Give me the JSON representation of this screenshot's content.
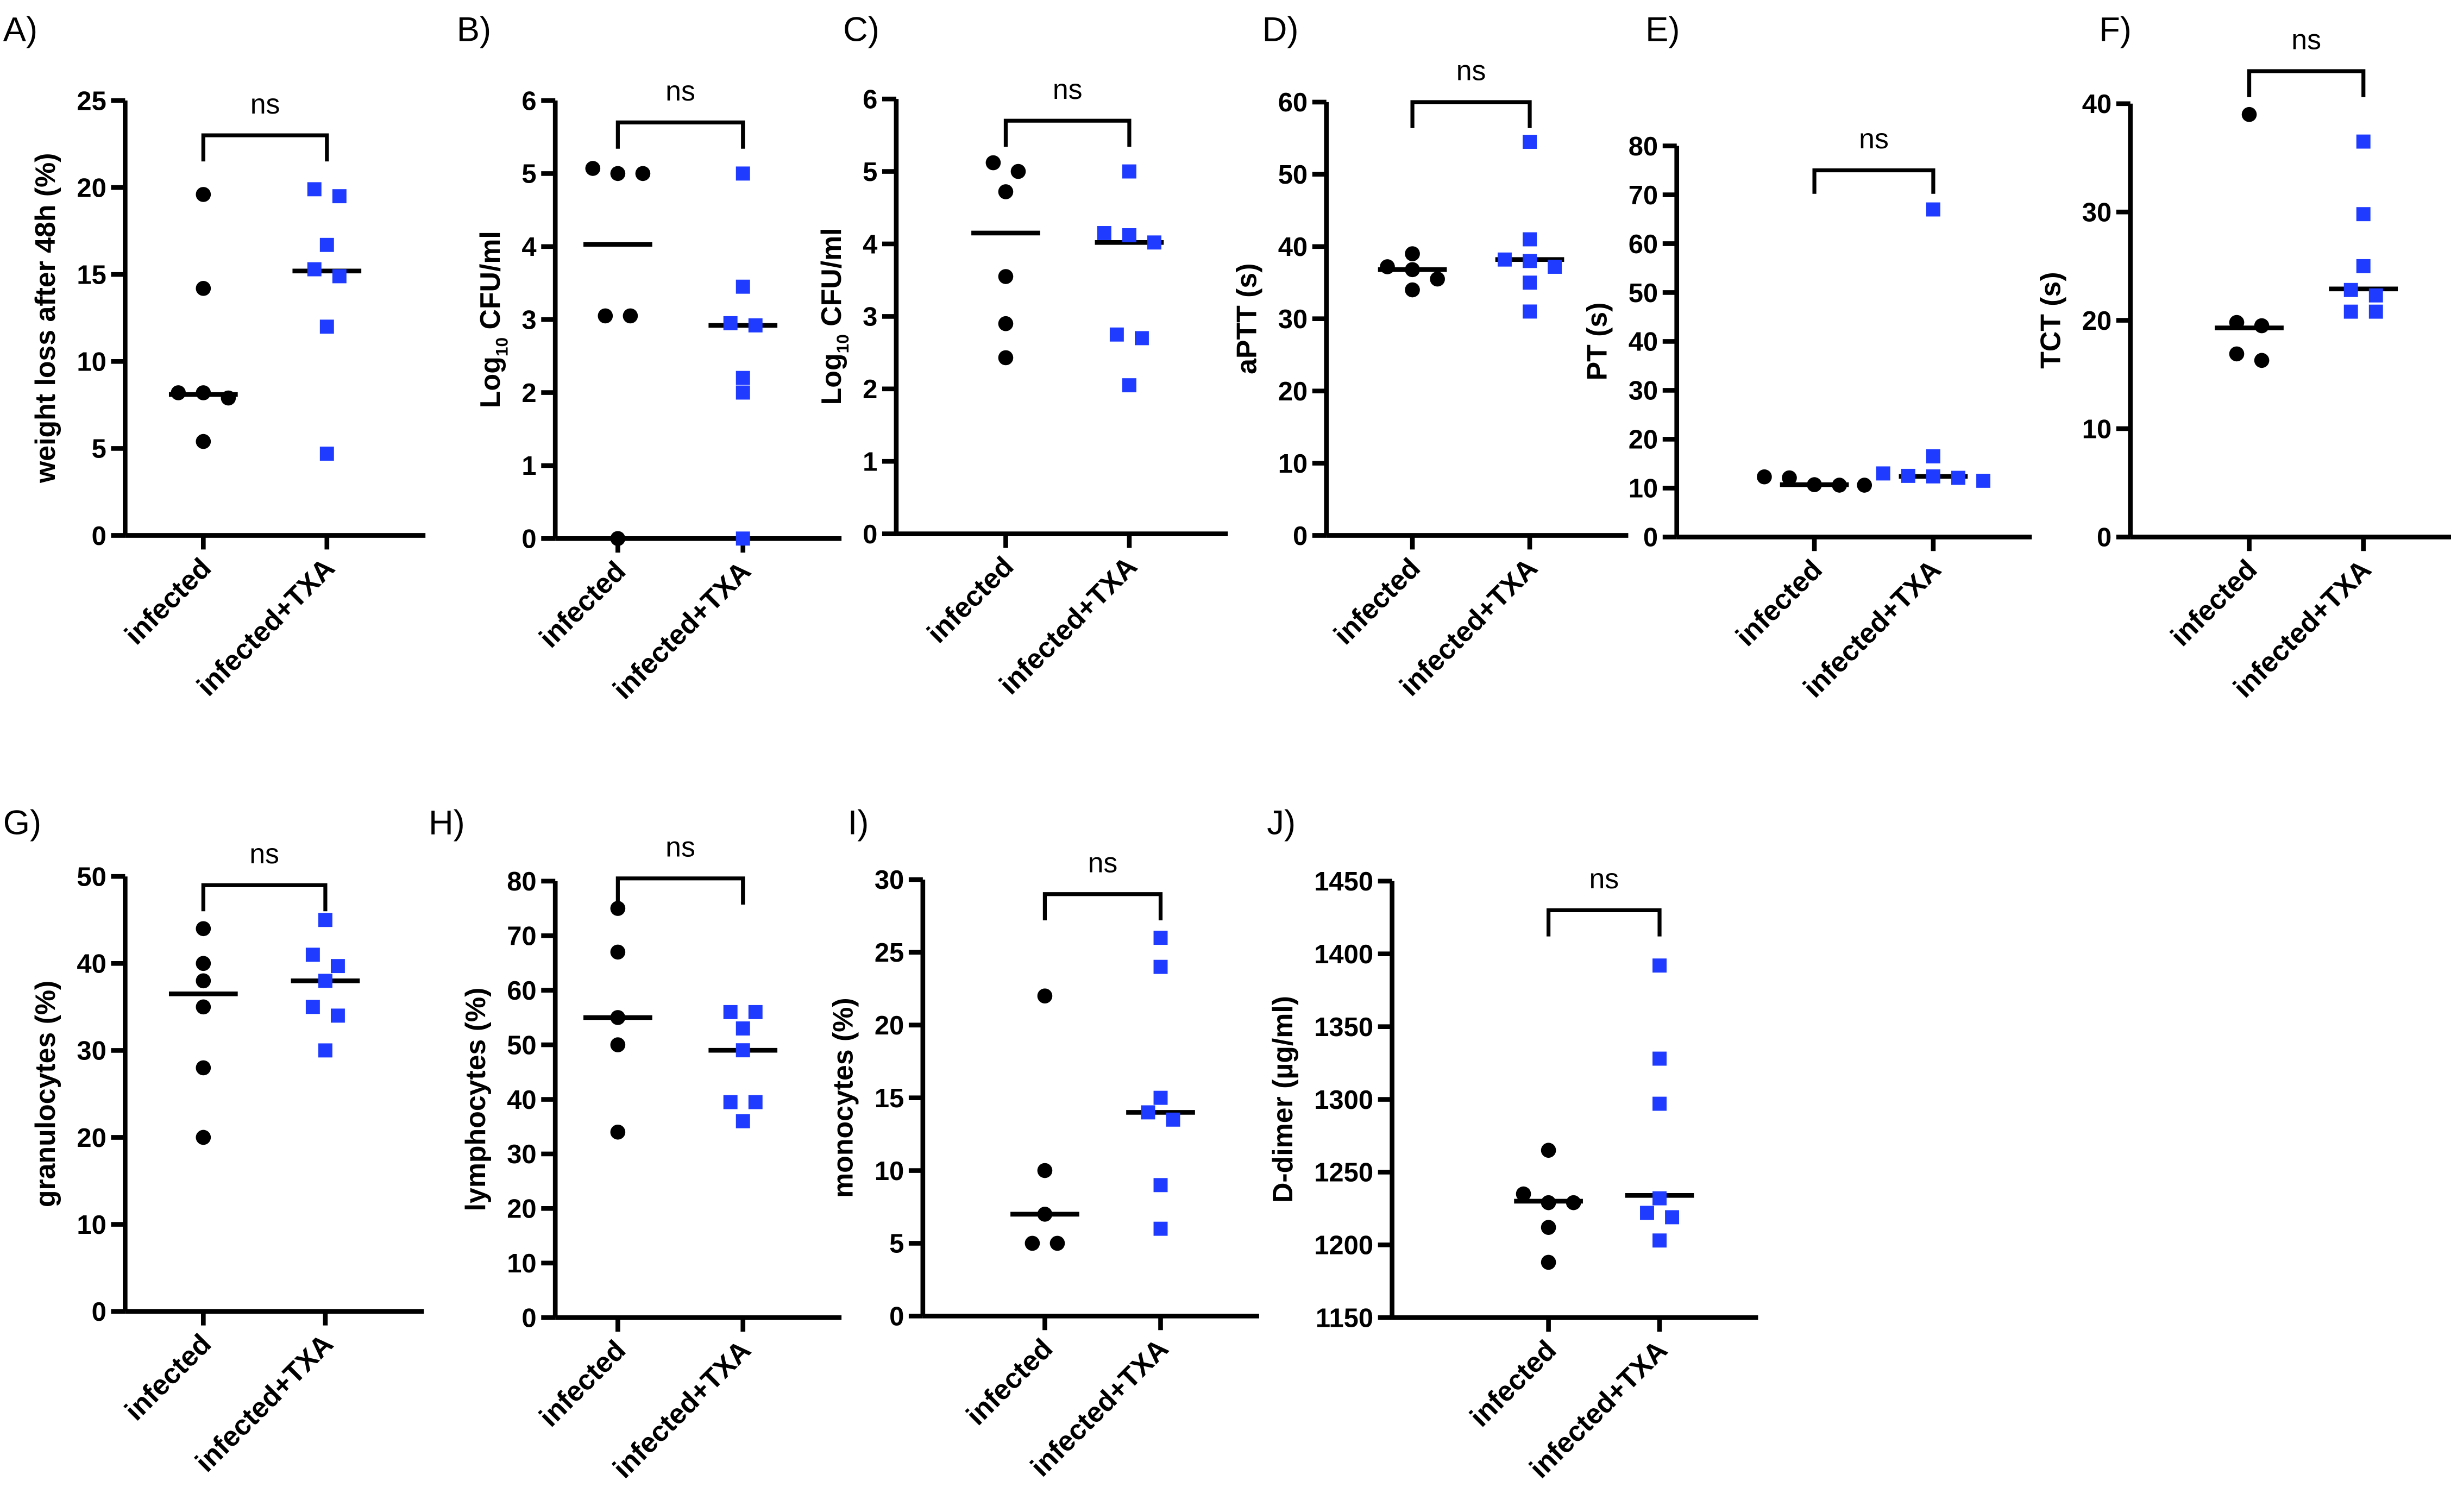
{
  "colors": {
    "infected": "#000000",
    "infected_txa": "#1f3bff"
  },
  "chart_data": [
    {
      "panel": "A)",
      "type": "scatter",
      "ylabel": "weight loss after 48h (%)",
      "ylim": [
        0,
        25
      ],
      "yticks": [
        0,
        5,
        10,
        15,
        20,
        25
      ],
      "categories": [
        "infected",
        "infected+TXA"
      ],
      "significance": "ns",
      "bracket_y": 23,
      "series": [
        {
          "name": "infected",
          "values": [
            19.6,
            14.2,
            8.2,
            7.9,
            8.2,
            5.4
          ],
          "center_line": 8.1
        },
        {
          "name": "infected+TXA",
          "values": [
            19.9,
            19.5,
            16.7,
            14.9,
            15.3,
            12.0,
            4.7
          ],
          "center_line": 15.2
        }
      ]
    },
    {
      "panel": "B)",
      "type": "scatter",
      "ylabel_parts": [
        "Log",
        "10",
        " CFU/ml"
      ],
      "ylim": [
        0,
        6
      ],
      "yticks": [
        0,
        1,
        2,
        3,
        4,
        5,
        6
      ],
      "categories": [
        "infected",
        "infected+TXA"
      ],
      "significance": "ns",
      "bracket_y": 5.7,
      "series": [
        {
          "name": "infected",
          "values": [
            5.07,
            5.0,
            5.0,
            3.05,
            3.05,
            0
          ],
          "center_line": 4.03
        },
        {
          "name": "infected+TXA",
          "values": [
            5.0,
            3.45,
            2.95,
            2.92,
            2.2,
            2.0,
            0
          ],
          "center_line": 2.92
        }
      ]
    },
    {
      "panel": "C)",
      "type": "scatter",
      "ylabel_parts": [
        "Log",
        "10",
        " CFU/ml"
      ],
      "ylim": [
        0,
        6
      ],
      "yticks": [
        0,
        1,
        2,
        3,
        4,
        5,
        6
      ],
      "categories": [
        "infected",
        "infected+TXA"
      ],
      "significance": "ns",
      "bracket_y": 5.7,
      "series": [
        {
          "name": "infected",
          "values": [
            5.12,
            5.0,
            4.72,
            3.55,
            2.9,
            2.43
          ],
          "center_line": 4.15
        },
        {
          "name": "infected+TXA",
          "values": [
            5.0,
            4.15,
            4.12,
            4.02,
            2.75,
            2.7,
            2.05
          ],
          "center_line": 4.02
        }
      ]
    },
    {
      "panel": "D)",
      "type": "scatter",
      "ylabel": "aPTT (s)",
      "ylim": [
        0,
        60
      ],
      "yticks": [
        0,
        10,
        20,
        30,
        40,
        50,
        60
      ],
      "categories": [
        "infected",
        "infected+TXA"
      ],
      "significance": "ns",
      "bracket_y": 60,
      "series": [
        {
          "name": "infected",
          "values": [
            39,
            37.2,
            36.8,
            35.5,
            34
          ],
          "center_line": 36.8
        },
        {
          "name": "infected+TXA",
          "values": [
            54.5,
            41,
            38.2,
            38,
            37.2,
            35,
            31
          ],
          "center_line": 38.2
        }
      ]
    },
    {
      "panel": "E)",
      "type": "scatter",
      "ylabel": "PT (s)",
      "ylim": [
        0,
        80
      ],
      "yticks": [
        0,
        10,
        20,
        30,
        40,
        50,
        60,
        70,
        80
      ],
      "categories": [
        "infected",
        "infected+TXA"
      ],
      "significance": "ns",
      "bracket_y": 75,
      "series": [
        {
          "name": "infected",
          "values": [
            12.3,
            12.1,
            10.7,
            10.6,
            10.6
          ],
          "center_line": 10.7
        },
        {
          "name": "infected+TXA",
          "values": [
            67,
            16.5,
            13,
            12.5,
            12.4,
            12.1,
            11.5
          ],
          "center_line": 12.4
        }
      ]
    },
    {
      "panel": "F)",
      "type": "scatter",
      "ylabel": "TCT (s)",
      "ylim": [
        0,
        40
      ],
      "yticks": [
        0,
        10,
        20,
        30,
        40
      ],
      "categories": [
        "infected",
        "infected+TXA"
      ],
      "significance": "ns",
      "bracket_y": 43,
      "series": [
        {
          "name": "infected",
          "values": [
            39,
            19.8,
            19.5,
            16.9,
            16.3
          ],
          "center_line": 19.3
        },
        {
          "name": "infected+TXA",
          "values": [
            36.5,
            29.8,
            25,
            22.8,
            22.3,
            20.8,
            20.8
          ],
          "center_line": 22.9
        }
      ]
    },
    {
      "panel": "G)",
      "type": "scatter",
      "ylabel": "granulocytes (%)",
      "ylim": [
        0,
        50
      ],
      "yticks": [
        0,
        10,
        20,
        30,
        40,
        50
      ],
      "categories": [
        "infected",
        "infected+TXA"
      ],
      "significance": "ns",
      "bracket_y": 49,
      "series": [
        {
          "name": "infected",
          "values": [
            44,
            40,
            38,
            35,
            28,
            20
          ],
          "center_line": 36.5
        },
        {
          "name": "infected+TXA",
          "values": [
            45,
            41,
            39.7,
            38,
            35,
            34,
            30
          ],
          "center_line": 38
        }
      ]
    },
    {
      "panel": "H)",
      "type": "scatter",
      "ylabel": "lymphocytes (%)",
      "ylim": [
        0,
        80
      ],
      "yticks": [
        0,
        10,
        20,
        30,
        40,
        50,
        60,
        70,
        80
      ],
      "categories": [
        "infected",
        "infected+TXA"
      ],
      "significance": "ns",
      "bracket_y": 80.5,
      "series": [
        {
          "name": "infected",
          "values": [
            75,
            67,
            55,
            50,
            34
          ],
          "center_line": 55
        },
        {
          "name": "infected+TXA",
          "values": [
            56,
            56,
            53,
            49,
            39.5,
            39.5,
            36
          ],
          "center_line": 49
        }
      ]
    },
    {
      "panel": "I)",
      "type": "scatter",
      "ylabel": "monocytes (%)",
      "ylim": [
        0,
        30
      ],
      "yticks": [
        0,
        5,
        10,
        15,
        20,
        25,
        30
      ],
      "categories": [
        "infected",
        "infected+TXA"
      ],
      "significance": "ns",
      "bracket_y": 29,
      "series": [
        {
          "name": "infected",
          "values": [
            22,
            10,
            7,
            5,
            5
          ],
          "center_line": 7
        },
        {
          "name": "infected+TXA",
          "values": [
            26,
            24,
            15,
            14,
            13.5,
            9,
            6
          ],
          "center_line": 14
        }
      ]
    },
    {
      "panel": "J)",
      "type": "scatter",
      "ylabel": "D-dimer (µg/ml)",
      "ylim": [
        1150,
        1450
      ],
      "yticks": [
        1150,
        1200,
        1250,
        1300,
        1350,
        1400,
        1450
      ],
      "categories": [
        "infected",
        "infected+TXA"
      ],
      "significance": "ns",
      "bracket_y": 1430,
      "series": [
        {
          "name": "infected",
          "values": [
            1265,
            1235,
            1229,
            1229,
            1212,
            1188
          ],
          "center_line": 1230
        },
        {
          "name": "infected+TXA",
          "values": [
            1392,
            1328,
            1297,
            1232,
            1222,
            1219,
            1203
          ],
          "center_line": 1234
        }
      ]
    }
  ]
}
